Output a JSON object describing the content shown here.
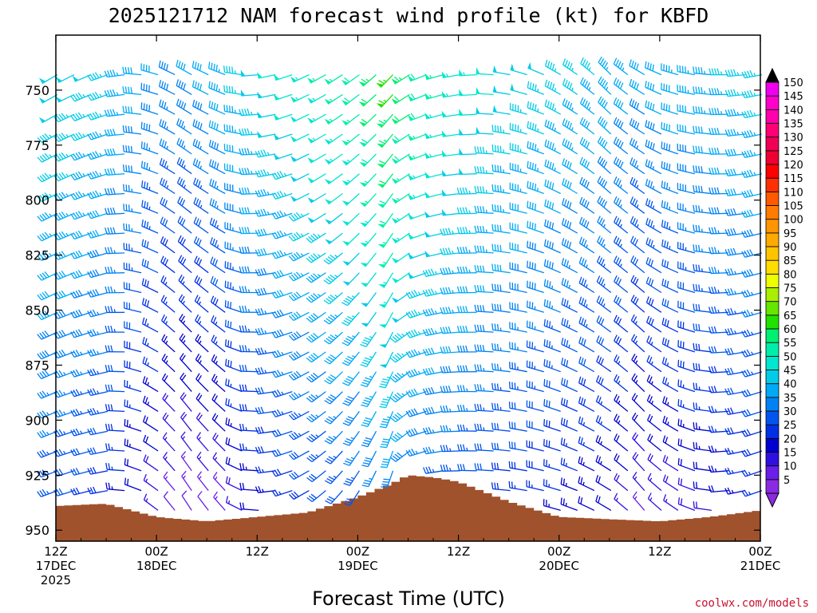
{
  "title": "2025121712 NAM forecast wind profile (kt) for KBFD",
  "credit": "coolwx.com/models",
  "chart_data": {
    "type": "wind_barb_time_height",
    "title": "2025121712 NAM forecast wind profile (kt) for KBFD",
    "xlabel": "Forecast Time (UTC)",
    "ylabel": "",
    "x_range_hours": [
      0,
      84
    ],
    "y_range_hPa": [
      955,
      725
    ],
    "y_ticks": [
      750,
      775,
      800,
      825,
      850,
      875,
      900,
      925,
      950
    ],
    "x_ticks": [
      {
        "hour": 0,
        "lines": [
          "12Z",
          "17DEC",
          "2025"
        ]
      },
      {
        "hour": 12,
        "lines": [
          "00Z",
          "18DEC"
        ]
      },
      {
        "hour": 24,
        "lines": [
          "12Z"
        ]
      },
      {
        "hour": 36,
        "lines": [
          "00Z",
          "19DEC"
        ]
      },
      {
        "hour": 48,
        "lines": [
          "12Z"
        ]
      },
      {
        "hour": 60,
        "lines": [
          "00Z",
          "20DEC"
        ]
      },
      {
        "hour": 72,
        "lines": [
          "12Z"
        ]
      },
      {
        "hour": 84,
        "lines": [
          "00Z",
          "21DEC"
        ]
      }
    ],
    "surface_pressure_hPa": {
      "hours": [
        0,
        6,
        12,
        18,
        24,
        30,
        36,
        40,
        42,
        45,
        48,
        54,
        60,
        66,
        72,
        78,
        84
      ],
      "values": [
        939,
        938,
        944,
        946,
        944,
        942,
        935,
        929,
        925,
        926,
        928,
        937,
        944,
        945,
        946,
        944,
        941
      ]
    },
    "wind_field_keyframes": {
      "hours": [
        0,
        6,
        11,
        15,
        20,
        24,
        30,
        36,
        40,
        43,
        48,
        54,
        60,
        66,
        70,
        74,
        80,
        84
      ],
      "dir_upper_deg": [
        240,
        250,
        280,
        300,
        290,
        265,
        245,
        235,
        225,
        245,
        260,
        280,
        300,
        315,
        300,
        285,
        270,
        260
      ],
      "dir_lower_deg": [
        250,
        260,
        300,
        330,
        320,
        275,
        240,
        210,
        195,
        250,
        270,
        275,
        285,
        300,
        320,
        305,
        265,
        250
      ],
      "speed_upper_kt": [
        50,
        48,
        42,
        40,
        45,
        50,
        55,
        60,
        68,
        62,
        55,
        50,
        48,
        45,
        42,
        44,
        46,
        48
      ],
      "speed_lower_kt": [
        30,
        25,
        15,
        8,
        10,
        18,
        25,
        28,
        32,
        30,
        28,
        25,
        22,
        18,
        12,
        14,
        18,
        22
      ]
    },
    "colorbar": {
      "levels": [
        5,
        10,
        15,
        20,
        25,
        30,
        35,
        40,
        45,
        50,
        55,
        60,
        65,
        70,
        75,
        80,
        85,
        90,
        95,
        100,
        105,
        110,
        115,
        120,
        125,
        130,
        135,
        140,
        145,
        150
      ],
      "colors": [
        "#8a2be2",
        "#6a1ee8",
        "#3010e0",
        "#0000d0",
        "#0030e6",
        "#0055ee",
        "#0082f4",
        "#00aaf6",
        "#00cce8",
        "#00e6d0",
        "#00eeaa",
        "#00f070",
        "#22e000",
        "#66e600",
        "#aaee00",
        "#eeff00",
        "#ffdd00",
        "#ffc400",
        "#ffaa00",
        "#ff9500",
        "#ff7c00",
        "#ff5a00",
        "#ff3000",
        "#ff0000",
        "#ee0033",
        "#f00055",
        "#ff0077",
        "#ff00aa",
        "#ff00cc",
        "#ee00ee"
      ]
    }
  }
}
